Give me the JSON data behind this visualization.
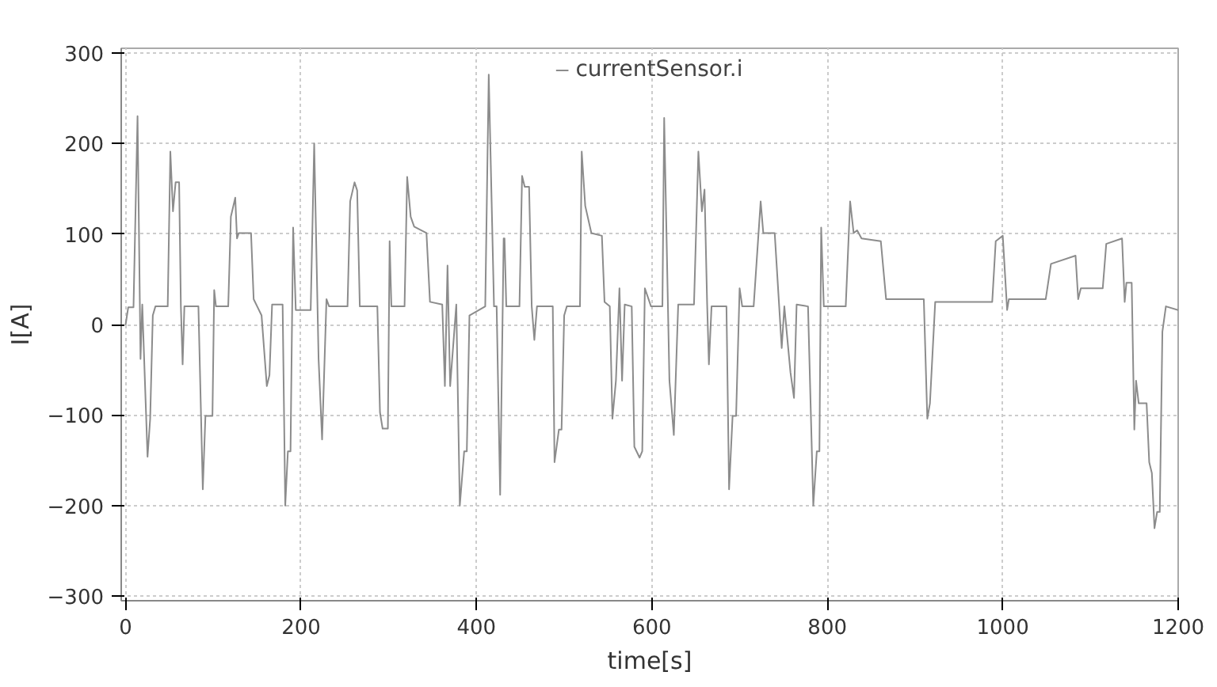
{
  "chart_data": {
    "type": "line",
    "xlabel": "time[s]",
    "ylabel": "I[A]",
    "xlim": [
      -5,
      1200
    ],
    "ylim": [
      -305,
      305
    ],
    "xticks": [
      0,
      200,
      400,
      600,
      800,
      1000,
      1200
    ],
    "yticks": [
      -300,
      -200,
      -100,
      0,
      100,
      200,
      300
    ],
    "grid": true,
    "legend": "top",
    "marker": "none",
    "line_style": "solid",
    "series": [
      {
        "name": "currentSensor.i",
        "color": "#8c8c8c",
        "x": [
          0,
          3,
          9,
          13.6,
          17,
          19,
          25,
          28,
          31,
          34,
          48,
          51,
          54,
          57,
          61,
          63,
          65,
          67,
          83,
          88,
          91,
          99,
          101,
          103,
          117,
          120,
          125,
          127,
          129,
          143,
          146,
          150,
          155,
          161,
          164,
          167,
          179,
          182,
          185,
          188,
          191,
          194,
          211,
          215,
          220,
          224,
          229,
          232,
          253,
          256,
          261,
          264,
          267,
          287,
          290,
          293,
          299,
          301,
          303,
          318,
          321,
          325,
          329,
          343,
          347,
          361,
          364,
          367,
          370,
          377,
          381,
          386,
          389,
          392,
          410,
          414,
          420,
          423,
          427,
          431,
          432,
          434,
          449,
          452,
          455,
          460,
          463,
          466,
          469,
          487,
          489,
          494,
          497,
          500,
          503,
          518,
          520,
          524,
          531,
          543,
          546,
          552,
          555,
          559,
          563,
          566,
          569,
          577,
          580,
          586,
          589,
          592,
          599,
          612,
          614,
          620,
          625,
          630,
          648,
          653,
          657,
          660,
          663,
          665,
          668,
          685,
          688,
          692,
          696,
          700,
          703,
          716,
          724,
          727,
          740,
          745,
          748,
          751,
          758,
          762,
          765,
          778,
          784,
          788,
          791,
          793,
          796,
          821,
          826,
          830,
          834,
          839,
          861,
          867,
          910,
          914,
          917,
          923,
          988,
          992,
          1000,
          1005,
          1007,
          1049,
          1055,
          1083,
          1086,
          1089,
          1114,
          1118,
          1136,
          1139,
          1141,
          1147,
          1150,
          1152,
          1155,
          1164,
          1167,
          1170,
          1173,
          1176,
          1179,
          1182,
          1186,
          1200
        ],
        "values": [
          0,
          19,
          19,
          230,
          -38,
          22,
          -146,
          -104,
          10,
          20,
          20,
          191,
          125,
          157,
          157,
          20,
          -44,
          20,
          20,
          -182,
          -101,
          -101,
          38,
          20,
          20,
          119,
          140,
          95,
          101,
          101,
          28,
          20,
          10,
          -68,
          -56,
          22,
          22,
          -200,
          -140,
          -140,
          107,
          16,
          16,
          200,
          -38,
          -127,
          28,
          20,
          20,
          136,
          157,
          148,
          20,
          20,
          -97,
          -115,
          -115,
          92,
          20,
          20,
          163,
          119,
          108,
          101,
          25,
          22,
          -68,
          65,
          -68,
          22,
          -200,
          -140,
          -140,
          10,
          20,
          276,
          20,
          20,
          -188,
          95,
          95,
          20,
          20,
          164,
          152,
          152,
          20,
          -17,
          20,
          20,
          -152,
          -116,
          -116,
          10,
          20,
          20,
          191,
          131,
          101,
          98,
          25,
          20,
          -104,
          -62,
          40,
          -62,
          22,
          20,
          -135,
          -147,
          -140,
          40,
          20,
          20,
          228,
          -62,
          -122,
          22,
          22,
          191,
          125,
          149,
          22,
          -44,
          20,
          20,
          -182,
          -101,
          -101,
          40,
          20,
          20,
          136,
          101,
          101,
          22,
          -26,
          20,
          -53,
          -81,
          22,
          20,
          -200,
          -140,
          -140,
          107,
          20,
          20,
          136,
          101,
          104,
          95,
          92,
          28,
          28,
          -104,
          -87,
          25,
          25,
          92,
          98,
          16,
          28,
          28,
          67,
          76,
          28,
          40,
          40,
          89,
          95,
          25,
          46,
          46,
          -116,
          -62,
          -87,
          -87,
          -152,
          -164,
          -225,
          -207,
          -207,
          -8,
          20,
          16
        ]
      }
    ]
  }
}
